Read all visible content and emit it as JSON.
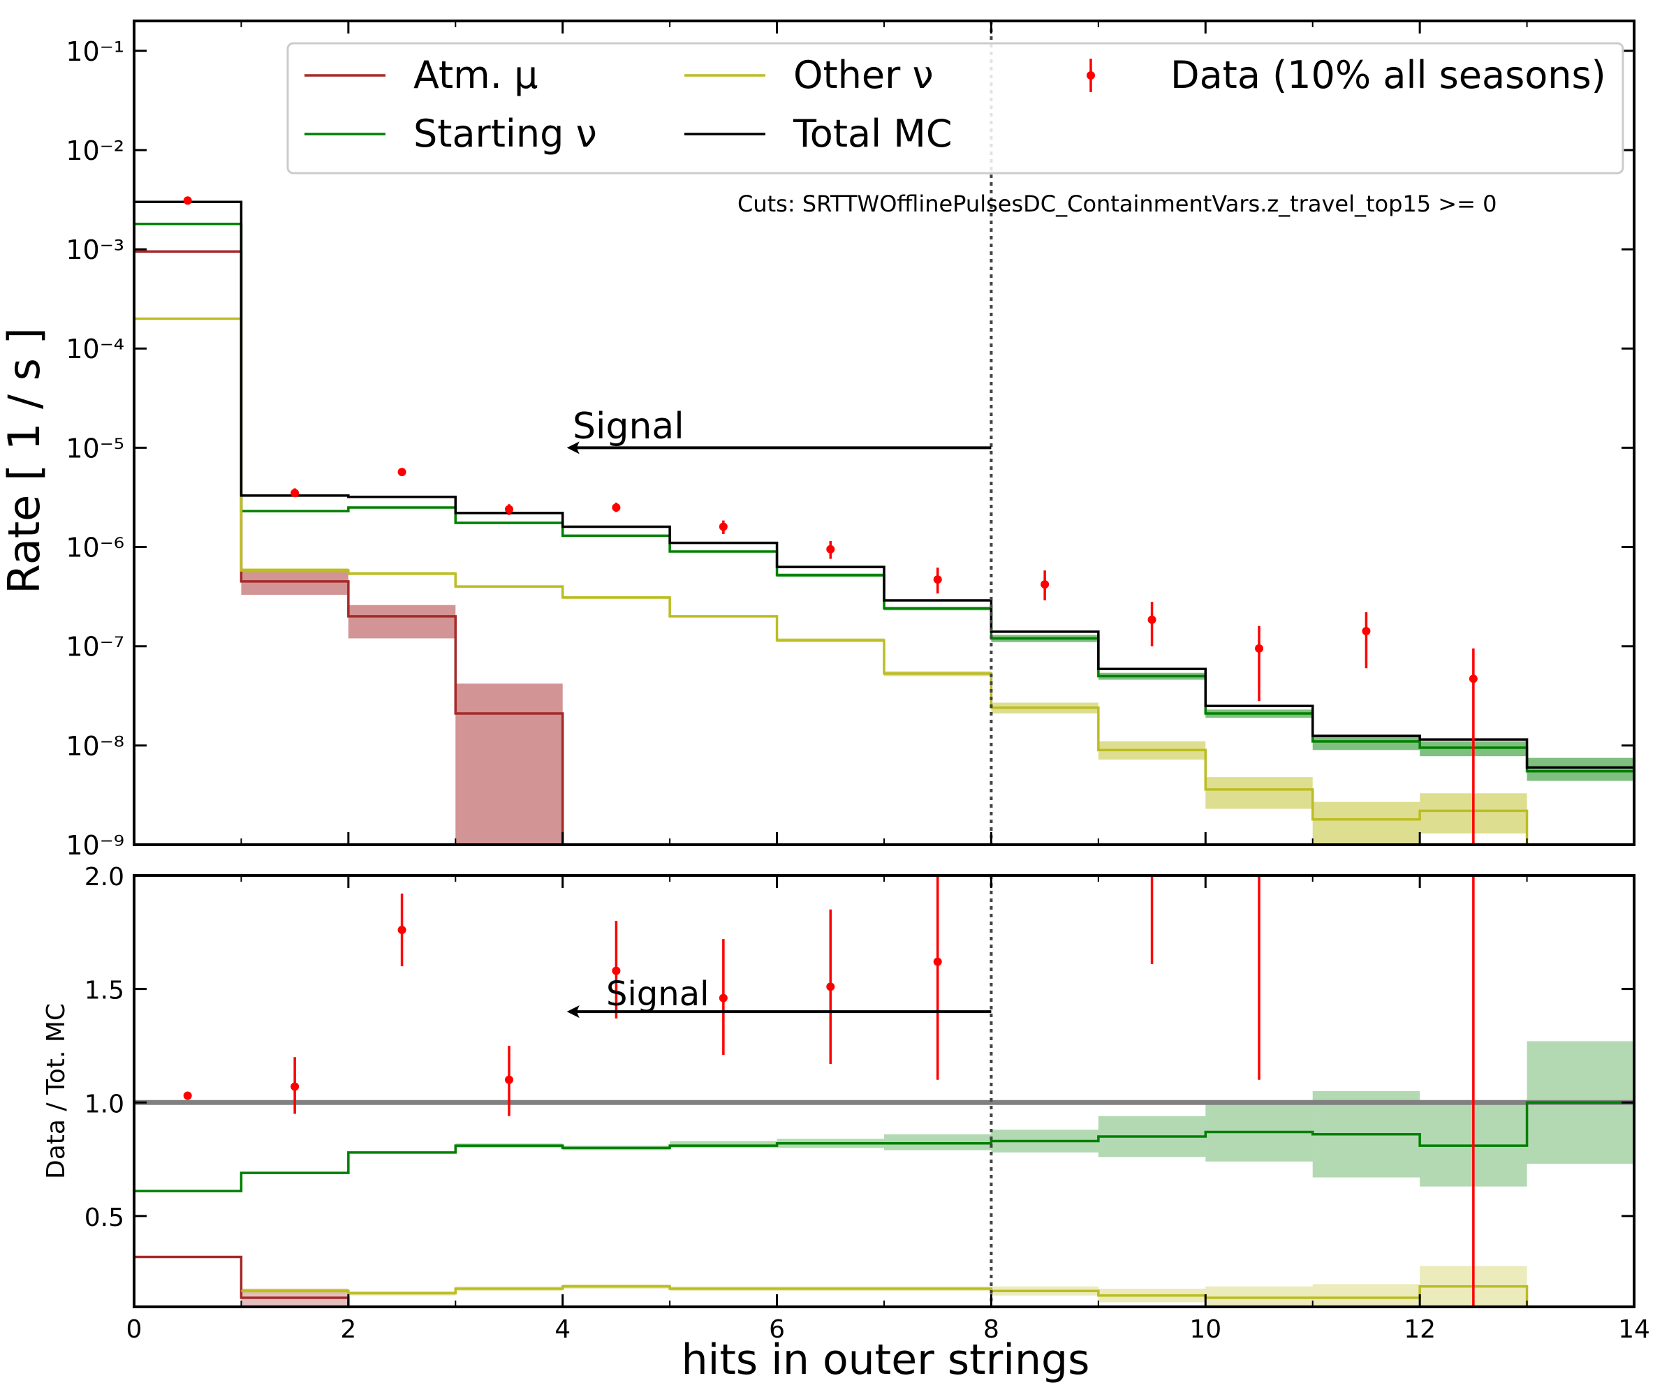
{
  "chart_data": [
    {
      "type": "line",
      "title": "",
      "xlabel": "hits in outer strings",
      "ylabel": "Rate [ 1 / s ]",
      "yscale": "log",
      "xlim": [
        0,
        14
      ],
      "ylim": [
        1e-09,
        0.2
      ],
      "grid": false,
      "legend": {
        "placement": "top",
        "entries": [
          "Atm. μ",
          "Starting ν",
          "Other ν",
          "Total MC",
          "Data (10% all seasons)"
        ]
      },
      "annotations": {
        "cuts": "Cuts:  SRTTWOfflinePulsesDC_ContainmentVars.z_travel_top15 >= 0",
        "signal": "Signal"
      },
      "cut_line_x": 8,
      "signal_arrow": {
        "from_x": 8,
        "to_x": 4,
        "y": 1e-05
      },
      "bin_edges": [
        0,
        1,
        2,
        3,
        4,
        5,
        6,
        7,
        8,
        9,
        10,
        11,
        12,
        13,
        14
      ],
      "series": [
        {
          "name": "Atm. μ",
          "color": "#a52a2a",
          "values": [
            0.00095,
            4.5e-07,
            2e-07,
            2.1e-08,
            null,
            null,
            null,
            null,
            null,
            null,
            null,
            null,
            null,
            null
          ],
          "band_low": [
            0.00095,
            3.3e-07,
            1.2e-07,
            1e-09,
            null,
            null,
            null,
            null,
            null,
            null,
            null,
            null,
            null,
            null
          ],
          "band_high": [
            0.00095,
            6e-07,
            2.6e-07,
            4.2e-08,
            null,
            null,
            null,
            null,
            null,
            null,
            null,
            null,
            null,
            null
          ]
        },
        {
          "name": "Starting ν",
          "color": "#008000",
          "values": [
            0.0018,
            2.3e-06,
            2.5e-06,
            1.75e-06,
            1.3e-06,
            9e-07,
            5.2e-07,
            2.4e-07,
            1.2e-07,
            5e-08,
            2.1e-08,
            1.1e-08,
            9.5e-09,
            5.5e-09
          ],
          "band_low": [
            0.0018,
            2.3e-06,
            2.5e-06,
            1.7e-06,
            1.27e-06,
            8.8e-07,
            5e-07,
            2.3e-07,
            1.1e-07,
            4.6e-08,
            1.9e-08,
            9e-09,
            7.8e-09,
            4.4e-09
          ],
          "band_high": [
            0.0018,
            2.3e-06,
            2.5e-06,
            1.8e-06,
            1.33e-06,
            9.2e-07,
            5.4e-07,
            2.5e-07,
            1.3e-07,
            5.4e-08,
            2.3e-08,
            1.25e-08,
            1.1e-08,
            7.5e-09
          ]
        },
        {
          "name": "Other ν",
          "color": "#bcbd22",
          "values": [
            0.0002,
            5.8e-07,
            5.4e-07,
            4e-07,
            3.1e-07,
            2e-07,
            1.15e-07,
            5.3e-08,
            2.4e-08,
            9e-09,
            3.6e-09,
            1.8e-09,
            2.2e-09,
            null
          ],
          "band_low": [
            0.0002,
            5.5e-07,
            5.2e-07,
            3.9e-07,
            3e-07,
            1.95e-07,
            1.1e-07,
            5e-08,
            2.1e-08,
            7.2e-09,
            2.3e-09,
            1e-09,
            1.3e-09,
            null
          ],
          "band_high": [
            0.0002,
            6.1e-07,
            5.6e-07,
            4.1e-07,
            3.2e-07,
            2.05e-07,
            1.2e-07,
            5.6e-08,
            2.7e-08,
            1.1e-08,
            4.8e-09,
            2.7e-09,
            3.3e-09,
            null
          ]
        },
        {
          "name": "Total MC",
          "color": "#000000",
          "values": [
            0.003,
            3.3e-06,
            3.2e-06,
            2.2e-06,
            1.6e-06,
            1.1e-06,
            6.3e-07,
            2.9e-07,
            1.4e-07,
            5.9e-08,
            2.5e-08,
            1.25e-08,
            1.15e-08,
            6e-09
          ]
        }
      ],
      "data_points": {
        "name": "Data (10% all seasons)",
        "color": "#ff0000",
        "x": [
          0.5,
          1.5,
          2.5,
          3.5,
          4.5,
          5.5,
          6.5,
          7.5,
          8.5,
          9.5,
          10.5,
          11.5,
          12.5
        ],
        "y": [
          0.0031,
          3.5e-06,
          5.7e-06,
          2.4e-06,
          2.5e-06,
          1.6e-06,
          9.5e-07,
          4.7e-07,
          4.2e-07,
          1.85e-07,
          9.5e-08,
          1.42e-07,
          4.7e-08
        ],
        "y_low": [
          0.0031,
          3.2e-06,
          5.4e-06,
          2.1e-06,
          2.25e-06,
          1.35e-06,
          7.6e-07,
          3.4e-07,
          2.9e-07,
          1e-07,
          2.8e-08,
          6e-08,
          1e-09
        ],
        "y_high": [
          0.0031,
          3.9e-06,
          6e-06,
          2.7e-06,
          2.8e-06,
          1.85e-06,
          1.15e-06,
          6.2e-07,
          5.8e-07,
          2.8e-07,
          1.6e-07,
          2.2e-07,
          9.5e-08
        ]
      },
      "y_tick_labels": [
        "10⁻⁹",
        "10⁻⁸",
        "10⁻⁷",
        "10⁻⁶",
        "10⁻⁵",
        "10⁻⁴",
        "10⁻³",
        "10⁻²",
        "10⁻¹"
      ],
      "y_tick_values": [
        1e-09,
        1e-08,
        1e-07,
        1e-06,
        1e-05,
        0.0001,
        0.001,
        0.01,
        0.1
      ]
    },
    {
      "type": "line",
      "title": "",
      "xlabel": "hits in outer strings",
      "ylabel": "Data / Tot. MC",
      "yscale": "linear",
      "xlim": [
        0,
        14
      ],
      "ylim": [
        0.1,
        2.0
      ],
      "reference_line_y": 1.0,
      "annotations": {
        "signal": "Signal"
      },
      "cut_line_x": 8,
      "signal_arrow": {
        "from_x": 8,
        "to_x": 4,
        "y": 1.4
      },
      "bin_edges": [
        0,
        1,
        2,
        3,
        4,
        5,
        6,
        7,
        8,
        9,
        10,
        11,
        12,
        13,
        14
      ],
      "series": [
        {
          "name": "Starting ν",
          "color": "#008000",
          "values": [
            0.61,
            0.69,
            0.78,
            0.81,
            0.8,
            0.81,
            0.82,
            0.82,
            0.83,
            0.85,
            0.87,
            0.86,
            0.81,
            1.0
          ],
          "band_low": [
            0.61,
            0.69,
            0.78,
            0.8,
            0.79,
            0.8,
            0.8,
            0.79,
            0.78,
            0.76,
            0.74,
            0.67,
            0.63,
            0.73
          ],
          "band_high": [
            0.61,
            0.69,
            0.78,
            0.82,
            0.81,
            0.83,
            0.84,
            0.86,
            0.88,
            0.94,
            1.0,
            1.05,
            1.0,
            1.27
          ]
        },
        {
          "name": "Atm. μ",
          "color": "#a52a2a",
          "values": [
            0.32,
            0.14,
            null,
            null,
            null,
            null,
            null,
            null,
            null,
            null,
            null,
            null,
            null,
            null
          ],
          "band_low": [
            0.32,
            0.1,
            null,
            null,
            null,
            null,
            null,
            null,
            null,
            null,
            null,
            null,
            null,
            null
          ],
          "band_high": [
            0.32,
            0.18,
            null,
            null,
            null,
            null,
            null,
            null,
            null,
            null,
            null,
            null,
            null,
            null
          ]
        },
        {
          "name": "Other ν",
          "color": "#bcbd22",
          "values": [
            null,
            0.17,
            0.16,
            0.18,
            0.19,
            0.18,
            0.18,
            0.18,
            0.17,
            0.15,
            0.14,
            0.14,
            0.19,
            null
          ],
          "band_low": [
            null,
            0.16,
            0.15,
            0.17,
            0.18,
            0.17,
            0.17,
            0.17,
            0.15,
            0.12,
            0.1,
            0.1,
            0.1,
            null
          ],
          "band_high": [
            null,
            0.18,
            0.17,
            0.19,
            0.2,
            0.19,
            0.19,
            0.19,
            0.19,
            0.18,
            0.19,
            0.2,
            0.28,
            null
          ]
        }
      ],
      "data_points": {
        "name": "Data (10% all seasons)",
        "color": "#ff0000",
        "x": [
          0.5,
          1.5,
          2.5,
          3.5,
          4.5,
          5.5,
          6.5,
          7.5,
          9.5,
          10.5,
          12.5
        ],
        "y": [
          1.03,
          1.07,
          1.76,
          1.1,
          1.58,
          1.46,
          1.51,
          1.62,
          null,
          null,
          null
        ],
        "y_low": [
          1.03,
          0.95,
          1.6,
          0.94,
          1.37,
          1.21,
          1.17,
          1.1,
          1.61,
          1.1,
          0.1
        ],
        "y_high": [
          1.03,
          1.2,
          1.92,
          1.25,
          1.8,
          1.72,
          1.85,
          2.0,
          2.0,
          2.0,
          2.0
        ]
      },
      "y_tick_labels": [
        "0.5",
        "1.0",
        "1.5",
        "2.0"
      ],
      "y_tick_values": [
        0.5,
        1.0,
        1.5,
        2.0
      ],
      "x_tick_labels": [
        "0",
        "2",
        "4",
        "6",
        "8",
        "10",
        "12",
        "14"
      ],
      "x_tick_values": [
        0,
        2,
        4,
        6,
        8,
        10,
        12,
        14
      ]
    }
  ]
}
